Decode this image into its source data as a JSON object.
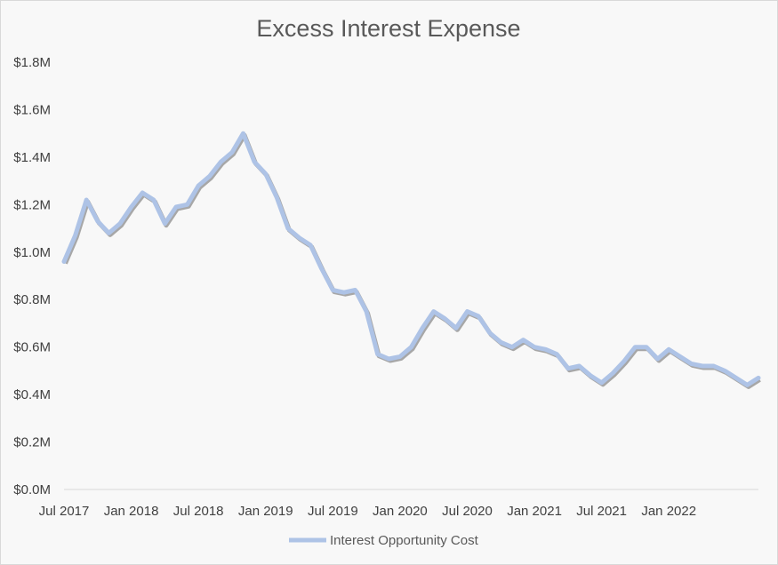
{
  "chart_data": {
    "type": "line",
    "title": "Excess Interest Expense",
    "xlabel": "",
    "ylabel": "",
    "ylim": [
      0,
      1.8
    ],
    "y_ticks": [
      "$0.0M",
      "$0.2M",
      "$0.4M",
      "$0.6M",
      "$0.8M",
      "$1.0M",
      "$1.2M",
      "$1.4M",
      "$1.6M",
      "$1.8M"
    ],
    "y_tick_values": [
      0,
      0.2,
      0.4,
      0.6,
      0.8,
      1.0,
      1.2,
      1.4,
      1.6,
      1.8
    ],
    "x_ticks": [
      "Jul 2017",
      "Jan 2018",
      "Jul 2018",
      "Jan 2019",
      "Jul 2019",
      "Jan 2020",
      "Jul 2020",
      "Jan 2021",
      "Jul 2021",
      "Jan 2022"
    ],
    "x_tick_values": [
      "2017-07",
      "2018-01",
      "2018-07",
      "2019-01",
      "2019-07",
      "2020-01",
      "2020-07",
      "2021-01",
      "2021-07",
      "2022-01"
    ],
    "x_range": [
      "2017-07",
      "2022-09"
    ],
    "grid": false,
    "legend": "bottom",
    "series": [
      {
        "name": "Interest Opportunity Cost",
        "color": "#aec3e6",
        "shadow_color": "#8c8c8c",
        "x": [
          "2017-07",
          "2017-08",
          "2017-09",
          "2017-10",
          "2017-11",
          "2017-12",
          "2018-01",
          "2018-02",
          "2018-03",
          "2018-04",
          "2018-05",
          "2018-06",
          "2018-07",
          "2018-08",
          "2018-09",
          "2018-10",
          "2018-11",
          "2018-12",
          "2019-01",
          "2019-02",
          "2019-03",
          "2019-04",
          "2019-05",
          "2019-06",
          "2019-07",
          "2019-08",
          "2019-09",
          "2019-10",
          "2019-11",
          "2019-12",
          "2020-01",
          "2020-02",
          "2020-03",
          "2020-04",
          "2020-05",
          "2020-06",
          "2020-07",
          "2020-08",
          "2020-09",
          "2020-10",
          "2020-11",
          "2020-12",
          "2021-01",
          "2021-02",
          "2021-03",
          "2021-04",
          "2021-05",
          "2021-06",
          "2021-07",
          "2021-08",
          "2021-09",
          "2021-10",
          "2021-11",
          "2021-12",
          "2022-01",
          "2022-02",
          "2022-03",
          "2022-04",
          "2022-05",
          "2022-06",
          "2022-07",
          "2022-08",
          "2022-09"
        ],
        "values": [
          0.96,
          1.07,
          1.22,
          1.13,
          1.08,
          1.12,
          1.19,
          1.25,
          1.22,
          1.12,
          1.19,
          1.2,
          1.28,
          1.32,
          1.38,
          1.42,
          1.5,
          1.38,
          1.33,
          1.23,
          1.1,
          1.06,
          1.03,
          0.93,
          0.84,
          0.83,
          0.84,
          0.75,
          0.57,
          0.55,
          0.56,
          0.6,
          0.68,
          0.75,
          0.72,
          0.68,
          0.75,
          0.73,
          0.66,
          0.62,
          0.6,
          0.63,
          0.6,
          0.59,
          0.57,
          0.51,
          0.52,
          0.48,
          0.45,
          0.49,
          0.54,
          0.6,
          0.6,
          0.55,
          0.59,
          0.56,
          0.53,
          0.52,
          0.52,
          0.5,
          0.47,
          0.44,
          0.47
        ]
      }
    ]
  }
}
